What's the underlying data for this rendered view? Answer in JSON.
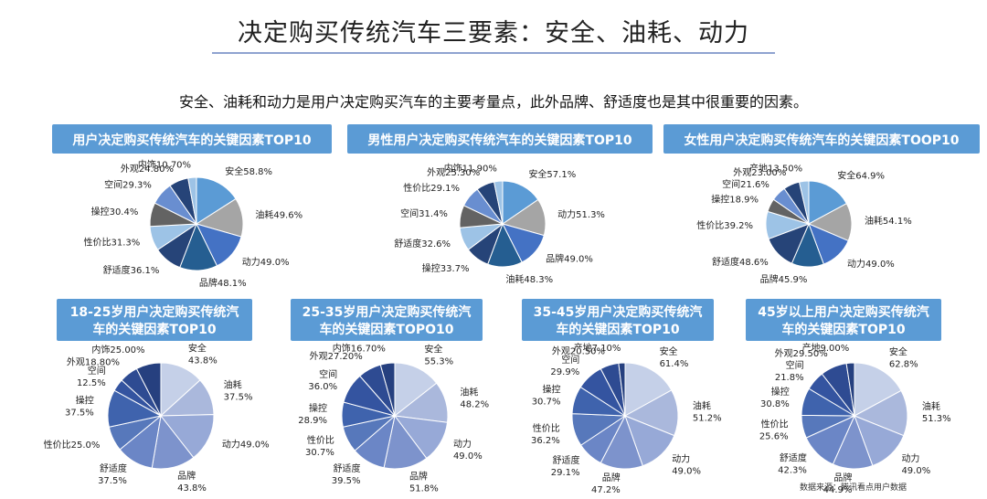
{
  "header": {
    "title": "决定购买传统汽车三要素：安全、油耗、动力",
    "subtitle": "安全、油耗和动力是用户决定购买汽车的主要考量点，此外品牌、舒适度也是其中很重要的因素。"
  },
  "footer": {
    "source": "数据来源：腾讯看点用户数据"
  },
  "colors": {
    "card_header": "#5b9bd5",
    "card_header_bottom": "#5b9bd5",
    "top_row_palette": [
      "#5b9bd5",
      "#a5a5a5",
      "#4472c4",
      "#255e91",
      "#264478",
      "#9dc3e6",
      "#636363",
      "#698ed0",
      "#264478",
      "#9dc3e6"
    ],
    "bottom_row_palette": [
      "#c5d0e8",
      "#aab8dc",
      "#97a9d7",
      "#7d93cc",
      "#6b86c6",
      "#5778bb",
      "#3f63ad",
      "#3454a0",
      "#2e4b92",
      "#26407f"
    ]
  },
  "chart_data": [
    {
      "type": "pie",
      "title": "用户决定购买传统汽车的关键因素TOP10",
      "labels": [
        "安全",
        "油耗",
        "动力",
        "品牌",
        "舒适度",
        "性价比",
        "操控",
        "空间",
        "外观",
        "内饰"
      ],
      "values": [
        58.8,
        49.6,
        49.0,
        48.1,
        36.1,
        31.3,
        30.4,
        29.3,
        24.8,
        10.7
      ],
      "display": [
        "安全58.8%",
        "油耗49.6%",
        "动力49.0%",
        "品牌48.1%",
        "舒适度36.1%",
        "性价比31.3%",
        "操控30.4%",
        "空间29.3%",
        "外观24.80%",
        "内饰10.70%"
      ]
    },
    {
      "type": "pie",
      "title": "男性用户决定购买传统汽车的关键因素TOP10",
      "labels": [
        "安全",
        "动力",
        "品牌",
        "油耗",
        "操控",
        "舒适度",
        "空间",
        "性价比",
        "外观",
        "内饰"
      ],
      "values": [
        57.1,
        51.3,
        49.0,
        48.3,
        33.7,
        32.6,
        31.4,
        29.1,
        25.3,
        11.9
      ],
      "display": [
        "安全57.1%",
        "动力51.3%",
        "品牌49.0%",
        "油耗48.3%",
        "操控33.7%",
        "舒适度32.6%",
        "空间31.4%",
        "性价比29.1%",
        "外观25.30%",
        "内饰11.90%"
      ]
    },
    {
      "type": "pie",
      "title": "女性用户决定购买传统汽车的关键因素TOOP10",
      "labels": [
        "安全",
        "油耗",
        "动力",
        "品牌",
        "舒适度",
        "性价比",
        "操控",
        "空间",
        "外观",
        "产地"
      ],
      "values": [
        64.9,
        54.1,
        49.0,
        45.9,
        48.6,
        39.2,
        18.9,
        21.6,
        23.0,
        13.5
      ],
      "display": [
        "安全64.9%",
        "油耗54.1%",
        "动力49.0%",
        "品牌45.9%",
        "舒适度48.6%",
        "性价比39.2%",
        "操控18.9%",
        "空间21.6%",
        "外观23.00%",
        "产地13.50%"
      ]
    },
    {
      "type": "pie",
      "title": "18-25岁用户决定购买传统汽车的关键因素TOP10",
      "labels": [
        "安全",
        "油耗",
        "动力",
        "品牌",
        "舒适度",
        "性价比",
        "操控",
        "空间",
        "外观",
        "内饰"
      ],
      "values": [
        43.8,
        37.5,
        49.0,
        43.8,
        37.5,
        25.0,
        37.5,
        12.5,
        18.8,
        25.0
      ],
      "display": [
        "安全\n43.8%",
        "油耗\n37.5%",
        "动力49.0%",
        "品牌\n43.8%",
        "舒适度\n37.5%",
        "性价比25.0%",
        "操控\n37.5%",
        "空间\n12.5%",
        "外观18.80%",
        "内饰25.00%"
      ]
    },
    {
      "type": "pie",
      "title": "25-35岁用户决定购买传统汽车的关键因素TOPO10",
      "labels": [
        "安全",
        "油耗",
        "动力",
        "品牌",
        "舒适度",
        "性价比",
        "操控",
        "空间",
        "外观",
        "内饰"
      ],
      "values": [
        55.3,
        48.2,
        49.0,
        51.8,
        39.5,
        30.7,
        28.9,
        36.0,
        27.2,
        16.7
      ],
      "display": [
        "安全\n55.3%",
        "油耗\n48.2%",
        "动力\n49.0%",
        "品牌\n51.8%",
        "舒适度\n39.5%",
        "性价比\n30.7%",
        "操控\n28.9%",
        "空间\n36.0%",
        "外观27.20%",
        "内饰16.70%"
      ]
    },
    {
      "type": "pie",
      "title": "35-45岁用户决定购买传统汽车的关键因素TOP10",
      "labels": [
        "安全",
        "油耗",
        "动力",
        "品牌",
        "舒适度",
        "性价比",
        "操控",
        "空间",
        "外观",
        "产地"
      ],
      "values": [
        61.4,
        51.2,
        49.0,
        47.2,
        29.1,
        36.2,
        30.7,
        29.9,
        20.5,
        7.1
      ],
      "display": [
        "安全\n61.4%",
        "油耗\n51.2%",
        "动力\n49.0%",
        "品牌\n47.2%",
        "舒适度\n29.1%",
        "性价比\n36.2%",
        "操控\n30.7%",
        "空间\n29.9%",
        "外观20.50%",
        "产地7.10%"
      ]
    },
    {
      "type": "pie",
      "title": "45岁以上用户决定购买传统汽车的关键因素TOP10",
      "labels": [
        "安全",
        "油耗",
        "动力",
        "品牌",
        "舒适度",
        "性价比",
        "操控",
        "空间",
        "外观",
        "产地"
      ],
      "values": [
        62.8,
        51.3,
        49.0,
        44.9,
        42.3,
        25.6,
        30.8,
        21.8,
        29.5,
        9.0
      ],
      "display": [
        "安全\n62.8%",
        "油耗\n51.3%",
        "动力\n49.0%",
        "品牌\n44.9%",
        "舒适度\n42.3%",
        "性价比\n25.6%",
        "操控\n30.8%",
        "空间\n21.8%",
        "外观29.50%",
        "产地9.00%"
      ]
    }
  ]
}
